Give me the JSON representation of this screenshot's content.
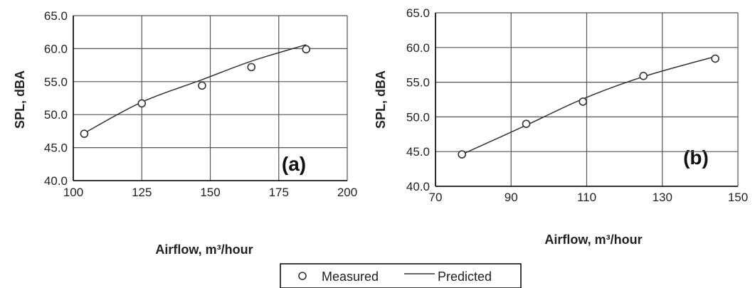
{
  "chart_data": [
    {
      "type": "scatter",
      "panel_label": "(a)",
      "xlabel": "Airflow, m³/hour",
      "ylabel": "SPL, dBA",
      "xlim": [
        100,
        200
      ],
      "ylim": [
        40.0,
        65.0
      ],
      "x_ticks": [
        "100",
        "125",
        "150",
        "175",
        "200"
      ],
      "y_ticks": [
        "40.0",
        "45.0",
        "50.0",
        "55.0",
        "60.0",
        "65.0"
      ],
      "grid": true,
      "series": [
        {
          "name": "Measured",
          "marker": "open-circle",
          "x": [
            104,
            125,
            147,
            165,
            185
          ],
          "y": [
            47.1,
            51.7,
            54.4,
            57.2,
            59.9
          ]
        },
        {
          "name": "Predicted",
          "style": "line",
          "x": [
            104,
            125,
            147,
            165,
            185
          ],
          "y": [
            47.2,
            51.9,
            55.3,
            58.1,
            60.6
          ]
        }
      ]
    },
    {
      "type": "scatter",
      "panel_label": "(b)",
      "xlabel": "Airflow, m³/hour",
      "ylabel": "SPL, dBA",
      "xlim": [
        70,
        150
      ],
      "ylim": [
        40.0,
        65.0
      ],
      "x_ticks": [
        "70",
        "90",
        "110",
        "130",
        "150"
      ],
      "y_ticks": [
        "40.0",
        "45.0",
        "50.0",
        "55.0",
        "60.0",
        "65.0"
      ],
      "grid": true,
      "series": [
        {
          "name": "Measured",
          "marker": "open-circle",
          "x": [
            77,
            94,
            109,
            125,
            144
          ],
          "y": [
            44.6,
            49.0,
            52.2,
            55.9,
            58.4
          ]
        },
        {
          "name": "Predicted",
          "style": "line",
          "x": [
            77,
            94,
            109,
            125,
            144
          ],
          "y": [
            44.6,
            48.8,
            52.6,
            55.8,
            58.7
          ]
        }
      ]
    }
  ],
  "legend": {
    "placement": "bottom-center",
    "entries": [
      {
        "label": "Measured",
        "symbol": "open-circle"
      },
      {
        "label": "Predicted",
        "symbol": "line"
      }
    ]
  },
  "colors": {
    "line": "#333333",
    "grid": "#555555",
    "axis": "#000000"
  }
}
